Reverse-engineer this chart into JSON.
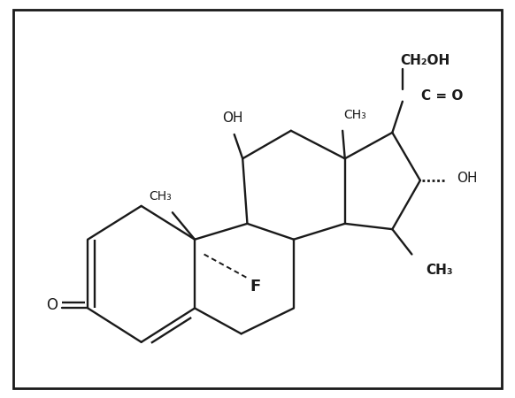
{
  "bg": "#ffffff",
  "lc": "#1a1a1a",
  "lw": 1.7,
  "fig_w": 5.82,
  "fig_h": 4.5,
  "xlim": [
    -0.5,
    10.5
  ],
  "ylim": [
    1.5,
    9.8
  ]
}
